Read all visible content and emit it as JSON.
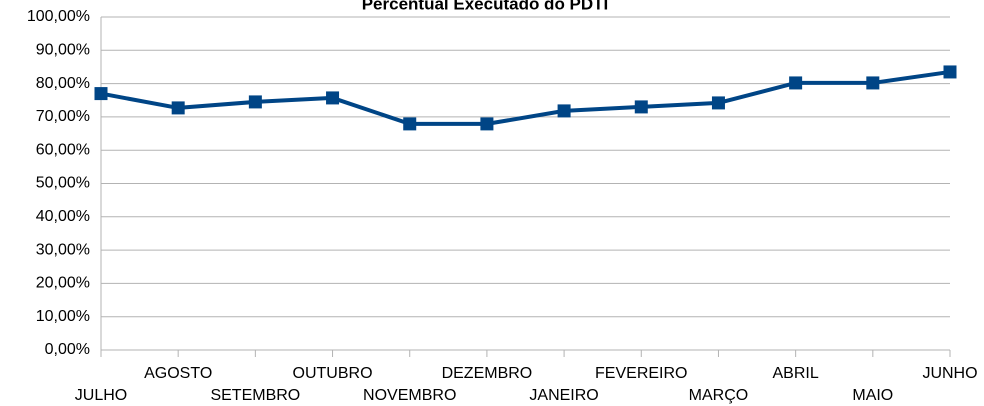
{
  "chart_data": {
    "type": "line",
    "title": "Percentual Executado do PDTI",
    "categories": [
      "JULHO",
      "AGOSTO",
      "SETEMBRO",
      "OUTUBRO",
      "NOVEMBRO",
      "DEZEMBRO",
      "JANEIRO",
      "FEVEREIRO",
      "MARÇO",
      "ABRIL",
      "MAIO",
      "JUNHO"
    ],
    "series": [
      {
        "color": "#004586",
        "values": [
          77,
          72.7,
          74.5,
          75.7,
          67.9,
          67.9,
          71.8,
          73,
          74.2,
          80.2,
          80.2,
          83.5
        ]
      }
    ],
    "ylim": [
      0,
      100
    ],
    "yticks": [
      {
        "value": 0,
        "label": "0,00%"
      },
      {
        "value": 10,
        "label": "10,00%"
      },
      {
        "value": 20,
        "label": "20,00%"
      },
      {
        "value": 30,
        "label": "30,00%"
      },
      {
        "value": 40,
        "label": "40,00%"
      },
      {
        "value": 50,
        "label": "50,00%"
      },
      {
        "value": 60,
        "label": "60,00%"
      },
      {
        "value": 70,
        "label": "70,00%"
      },
      {
        "value": 80,
        "label": "80,00%"
      },
      {
        "value": 90,
        "label": "90,00%"
      },
      {
        "value": 100,
        "label": "100,00%"
      }
    ],
    "grid": true
  }
}
